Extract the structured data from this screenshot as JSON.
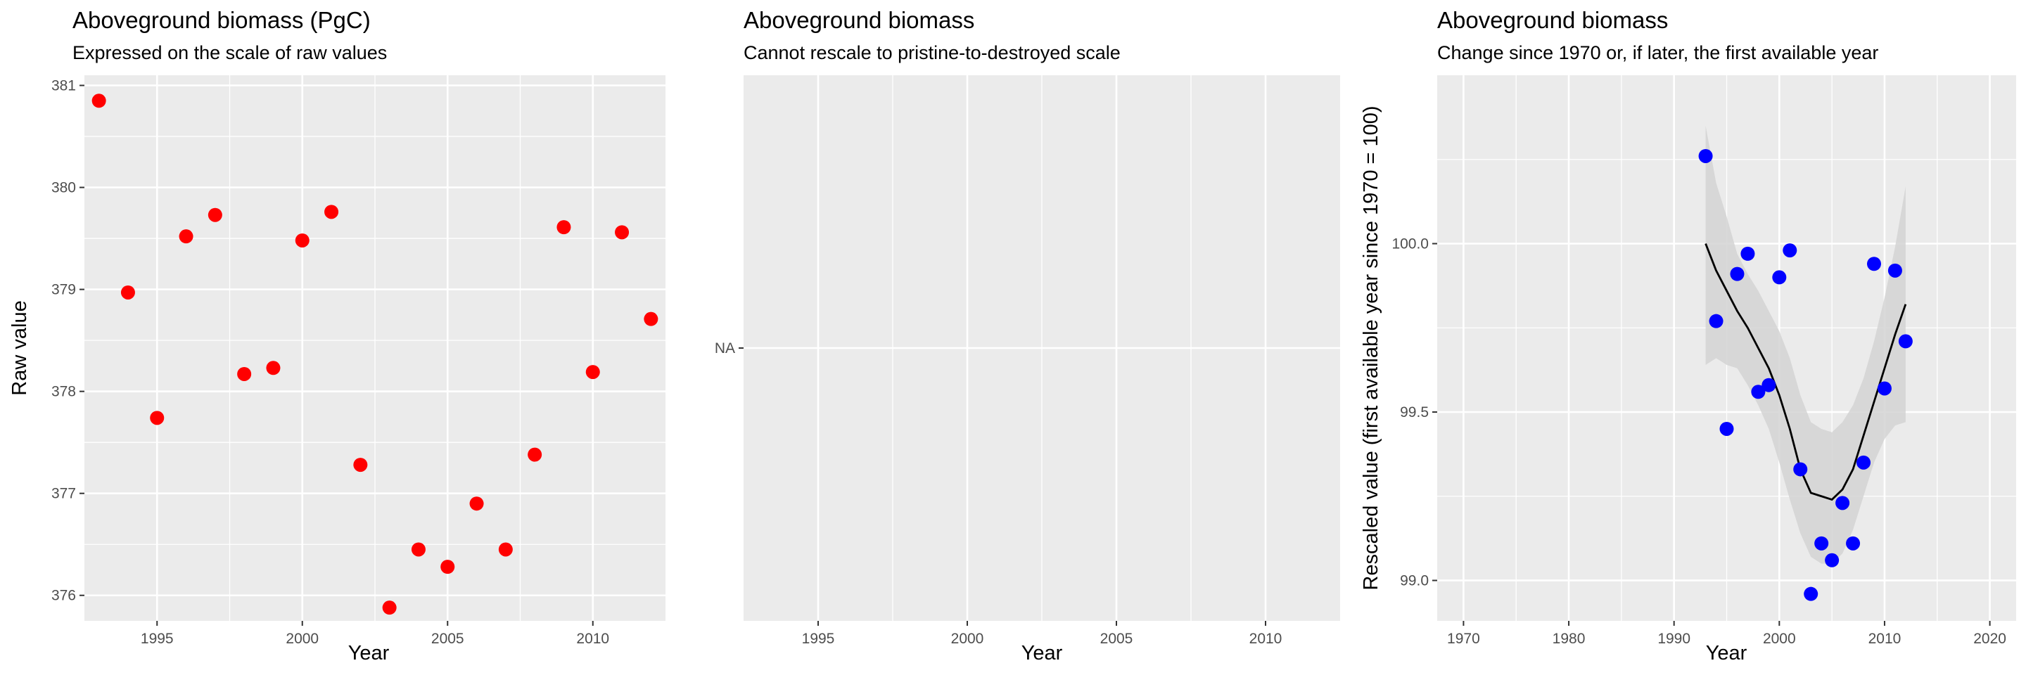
{
  "colors": {
    "panel_background": "#ebebeb",
    "grid": "#ffffff",
    "raw_points": "#ff0000",
    "rescaled_points": "#0000ff",
    "trend_line": "#000000",
    "confidence_band": "#d3d3d3"
  },
  "chart_data": [
    {
      "type": "scatter",
      "title": "Aboveground biomass (PgC)",
      "subtitle": "Expressed on the scale of raw values",
      "xlabel": "Year",
      "ylabel": "Raw value",
      "xlim": [
        1992.5,
        2012.5
      ],
      "ylim": [
        375.75,
        381.1
      ],
      "xticks": [
        1995,
        2000,
        2005,
        2010
      ],
      "xtick_labels": [
        "1995",
        "2000",
        "2005",
        "2010"
      ],
      "yticks": [
        376,
        377,
        378,
        379,
        380,
        381
      ],
      "ytick_labels": [
        "376",
        "377",
        "378",
        "379",
        "380",
        "381"
      ],
      "grid": true,
      "point_color": "#ff0000",
      "x": [
        1993,
        1994,
        1995,
        1996,
        1997,
        1998,
        1999,
        2000,
        2001,
        2002,
        2003,
        2004,
        2005,
        2006,
        2007,
        2008,
        2009,
        2010,
        2011,
        2012
      ],
      "y": [
        380.85,
        378.97,
        377.74,
        379.52,
        379.73,
        378.17,
        378.23,
        379.48,
        379.76,
        377.28,
        375.88,
        376.45,
        376.28,
        376.9,
        376.45,
        377.38,
        379.61,
        378.19,
        379.56,
        378.71
      ]
    },
    {
      "type": "scatter",
      "title": "Aboveground biomass",
      "subtitle": "Cannot rescale to pristine-to-destroyed scale",
      "xlabel": "Year",
      "ylabel": "",
      "xlim": [
        1992.5,
        2012.5
      ],
      "xticks": [
        1995,
        2000,
        2005,
        2010
      ],
      "xtick_labels": [
        "1995",
        "2000",
        "2005",
        "2010"
      ],
      "yticks": [
        "NA"
      ],
      "ytick_labels": [
        "NA"
      ],
      "grid": true,
      "x": [],
      "y": []
    },
    {
      "type": "scatter",
      "title": "Aboveground biomass",
      "subtitle": "Change since 1970 or, if later, the first available year",
      "xlabel": "Year",
      "ylabel": "Rescaled value (first available year since 1970 = 100)",
      "xlim": [
        1967.5,
        2022.5
      ],
      "ylim": [
        98.88,
        100.5
      ],
      "xticks": [
        1970,
        1980,
        1990,
        2000,
        2010,
        2020
      ],
      "xtick_labels": [
        "1970",
        "1980",
        "1990",
        "2000",
        "2010",
        "2020"
      ],
      "yticks": [
        99.0,
        99.5,
        100.0
      ],
      "ytick_labels": [
        "99.0",
        "99.5",
        "100.0"
      ],
      "grid": true,
      "point_color": "#0000ff",
      "x": [
        1993,
        1994,
        1995,
        1996,
        1997,
        1998,
        1999,
        2000,
        2001,
        2002,
        2003,
        2004,
        2005,
        2006,
        2007,
        2008,
        2009,
        2010,
        2011,
        2012
      ],
      "y": [
        100.26,
        99.77,
        99.45,
        99.91,
        99.97,
        99.56,
        99.58,
        99.9,
        99.98,
        99.33,
        98.96,
        99.11,
        99.06,
        99.23,
        99.11,
        99.35,
        99.94,
        99.57,
        99.92,
        99.71
      ],
      "trend": {
        "x": [
          1993,
          1994,
          1995,
          1996,
          1997,
          1998,
          1999,
          2000,
          2001,
          2002,
          2003,
          2004,
          2005,
          2006,
          2007,
          2008,
          2009,
          2010,
          2011,
          2012
        ],
        "y": [
          100.0,
          99.92,
          99.86,
          99.8,
          99.75,
          99.69,
          99.63,
          99.55,
          99.45,
          99.33,
          99.26,
          99.25,
          99.24,
          99.27,
          99.33,
          99.43,
          99.53,
          99.63,
          99.73,
          99.82
        ],
        "lower": [
          99.64,
          99.66,
          99.64,
          99.63,
          99.58,
          99.52,
          99.45,
          99.35,
          99.24,
          99.14,
          99.07,
          99.05,
          99.05,
          99.08,
          99.15,
          99.25,
          99.35,
          99.42,
          99.46,
          99.47
        ],
        "upper": [
          100.35,
          100.18,
          100.08,
          99.97,
          99.91,
          99.86,
          99.8,
          99.74,
          99.66,
          99.55,
          99.47,
          99.45,
          99.44,
          99.47,
          99.52,
          99.6,
          99.71,
          99.84,
          99.99,
          100.17
        ]
      }
    }
  ]
}
